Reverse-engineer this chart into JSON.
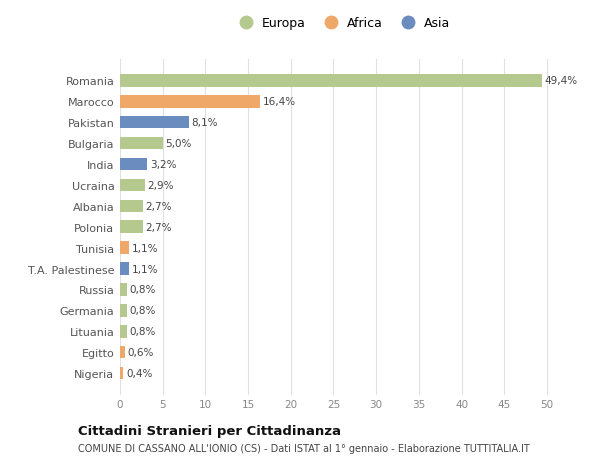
{
  "countries": [
    "Romania",
    "Marocco",
    "Pakistan",
    "Bulgaria",
    "India",
    "Ucraina",
    "Albania",
    "Polonia",
    "Tunisia",
    "T.A. Palestinese",
    "Russia",
    "Germania",
    "Lituania",
    "Egitto",
    "Nigeria"
  ],
  "values": [
    49.4,
    16.4,
    8.1,
    5.0,
    3.2,
    2.9,
    2.7,
    2.7,
    1.1,
    1.1,
    0.8,
    0.8,
    0.8,
    0.6,
    0.4
  ],
  "labels": [
    "49,4%",
    "16,4%",
    "8,1%",
    "5,0%",
    "3,2%",
    "2,9%",
    "2,7%",
    "2,7%",
    "1,1%",
    "1,1%",
    "0,8%",
    "0,8%",
    "0,8%",
    "0,6%",
    "0,4%"
  ],
  "continents": [
    "Europa",
    "Africa",
    "Asia",
    "Europa",
    "Asia",
    "Europa",
    "Europa",
    "Europa",
    "Africa",
    "Asia",
    "Europa",
    "Europa",
    "Europa",
    "Africa",
    "Africa"
  ],
  "colors": {
    "Europa": "#b5c98e",
    "Africa": "#f0a868",
    "Asia": "#6b8cbf"
  },
  "title": "Cittadini Stranieri per Cittadinanza",
  "subtitle": "COMUNE DI CASSANO ALL'IONIO (CS) - Dati ISTAT al 1° gennaio - Elaborazione TUTTITALIA.IT",
  "xlim": [
    0,
    52
  ],
  "background_color": "#ffffff",
  "grid_color": "#e0e0e0",
  "bar_height": 0.6,
  "figsize": [
    6.0,
    4.6
  ],
  "dpi": 100
}
